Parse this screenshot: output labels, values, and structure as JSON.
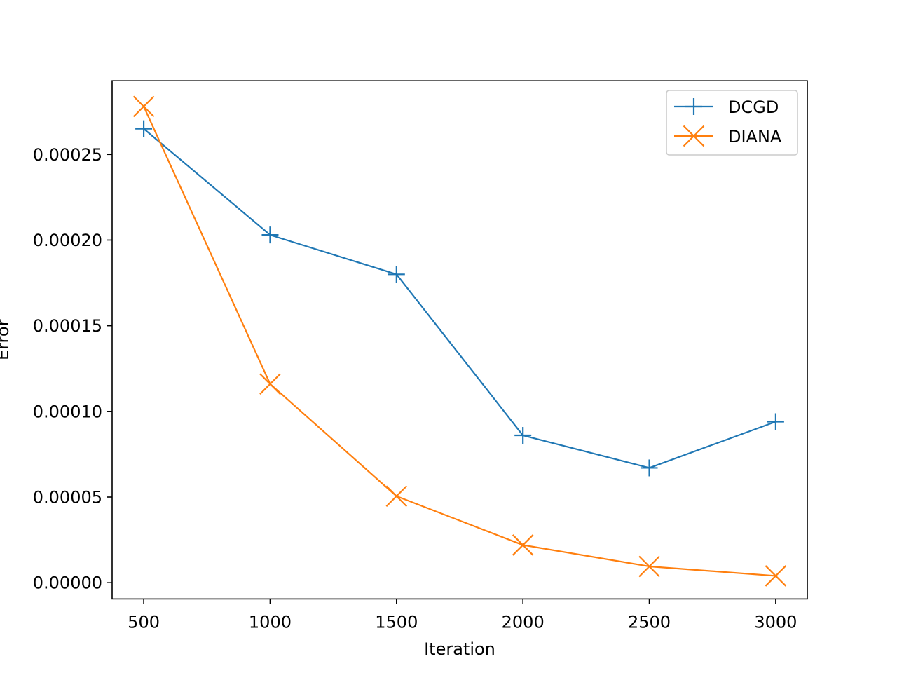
{
  "chart_data": {
    "type": "line",
    "xlabel": "Iteration",
    "ylabel": "Error",
    "xlim": [
      375,
      3125
    ],
    "ylim": [
      -9.5e-06,
      0.000293
    ],
    "x_ticks": [
      500,
      1000,
      1500,
      2000,
      2500,
      3000
    ],
    "x_tick_labels": [
      "500",
      "1000",
      "1500",
      "2000",
      "2500",
      "3000"
    ],
    "y_ticks": [
      0,
      5e-05,
      0.0001,
      0.00015,
      0.0002,
      0.00025
    ],
    "y_tick_labels": [
      "0.00000",
      "0.00005",
      "0.00010",
      "0.00015",
      "0.00020",
      "0.00025"
    ],
    "grid": false,
    "legend_position": "top-right",
    "x": [
      500,
      1000,
      1500,
      2000,
      2500,
      3000
    ],
    "series": [
      {
        "name": "DCGD",
        "values": [
          0.000265,
          0.000203,
          0.00018,
          8.6e-05,
          6.7e-05,
          9.4e-05
        ],
        "color": "#1f77b4",
        "marker": "plus"
      },
      {
        "name": "DIANA",
        "values": [
          0.000278,
          0.000116,
          5.05e-05,
          2.2e-05,
          9.5e-06,
          4e-06
        ],
        "color": "#ff7f0e",
        "marker": "x"
      }
    ]
  }
}
